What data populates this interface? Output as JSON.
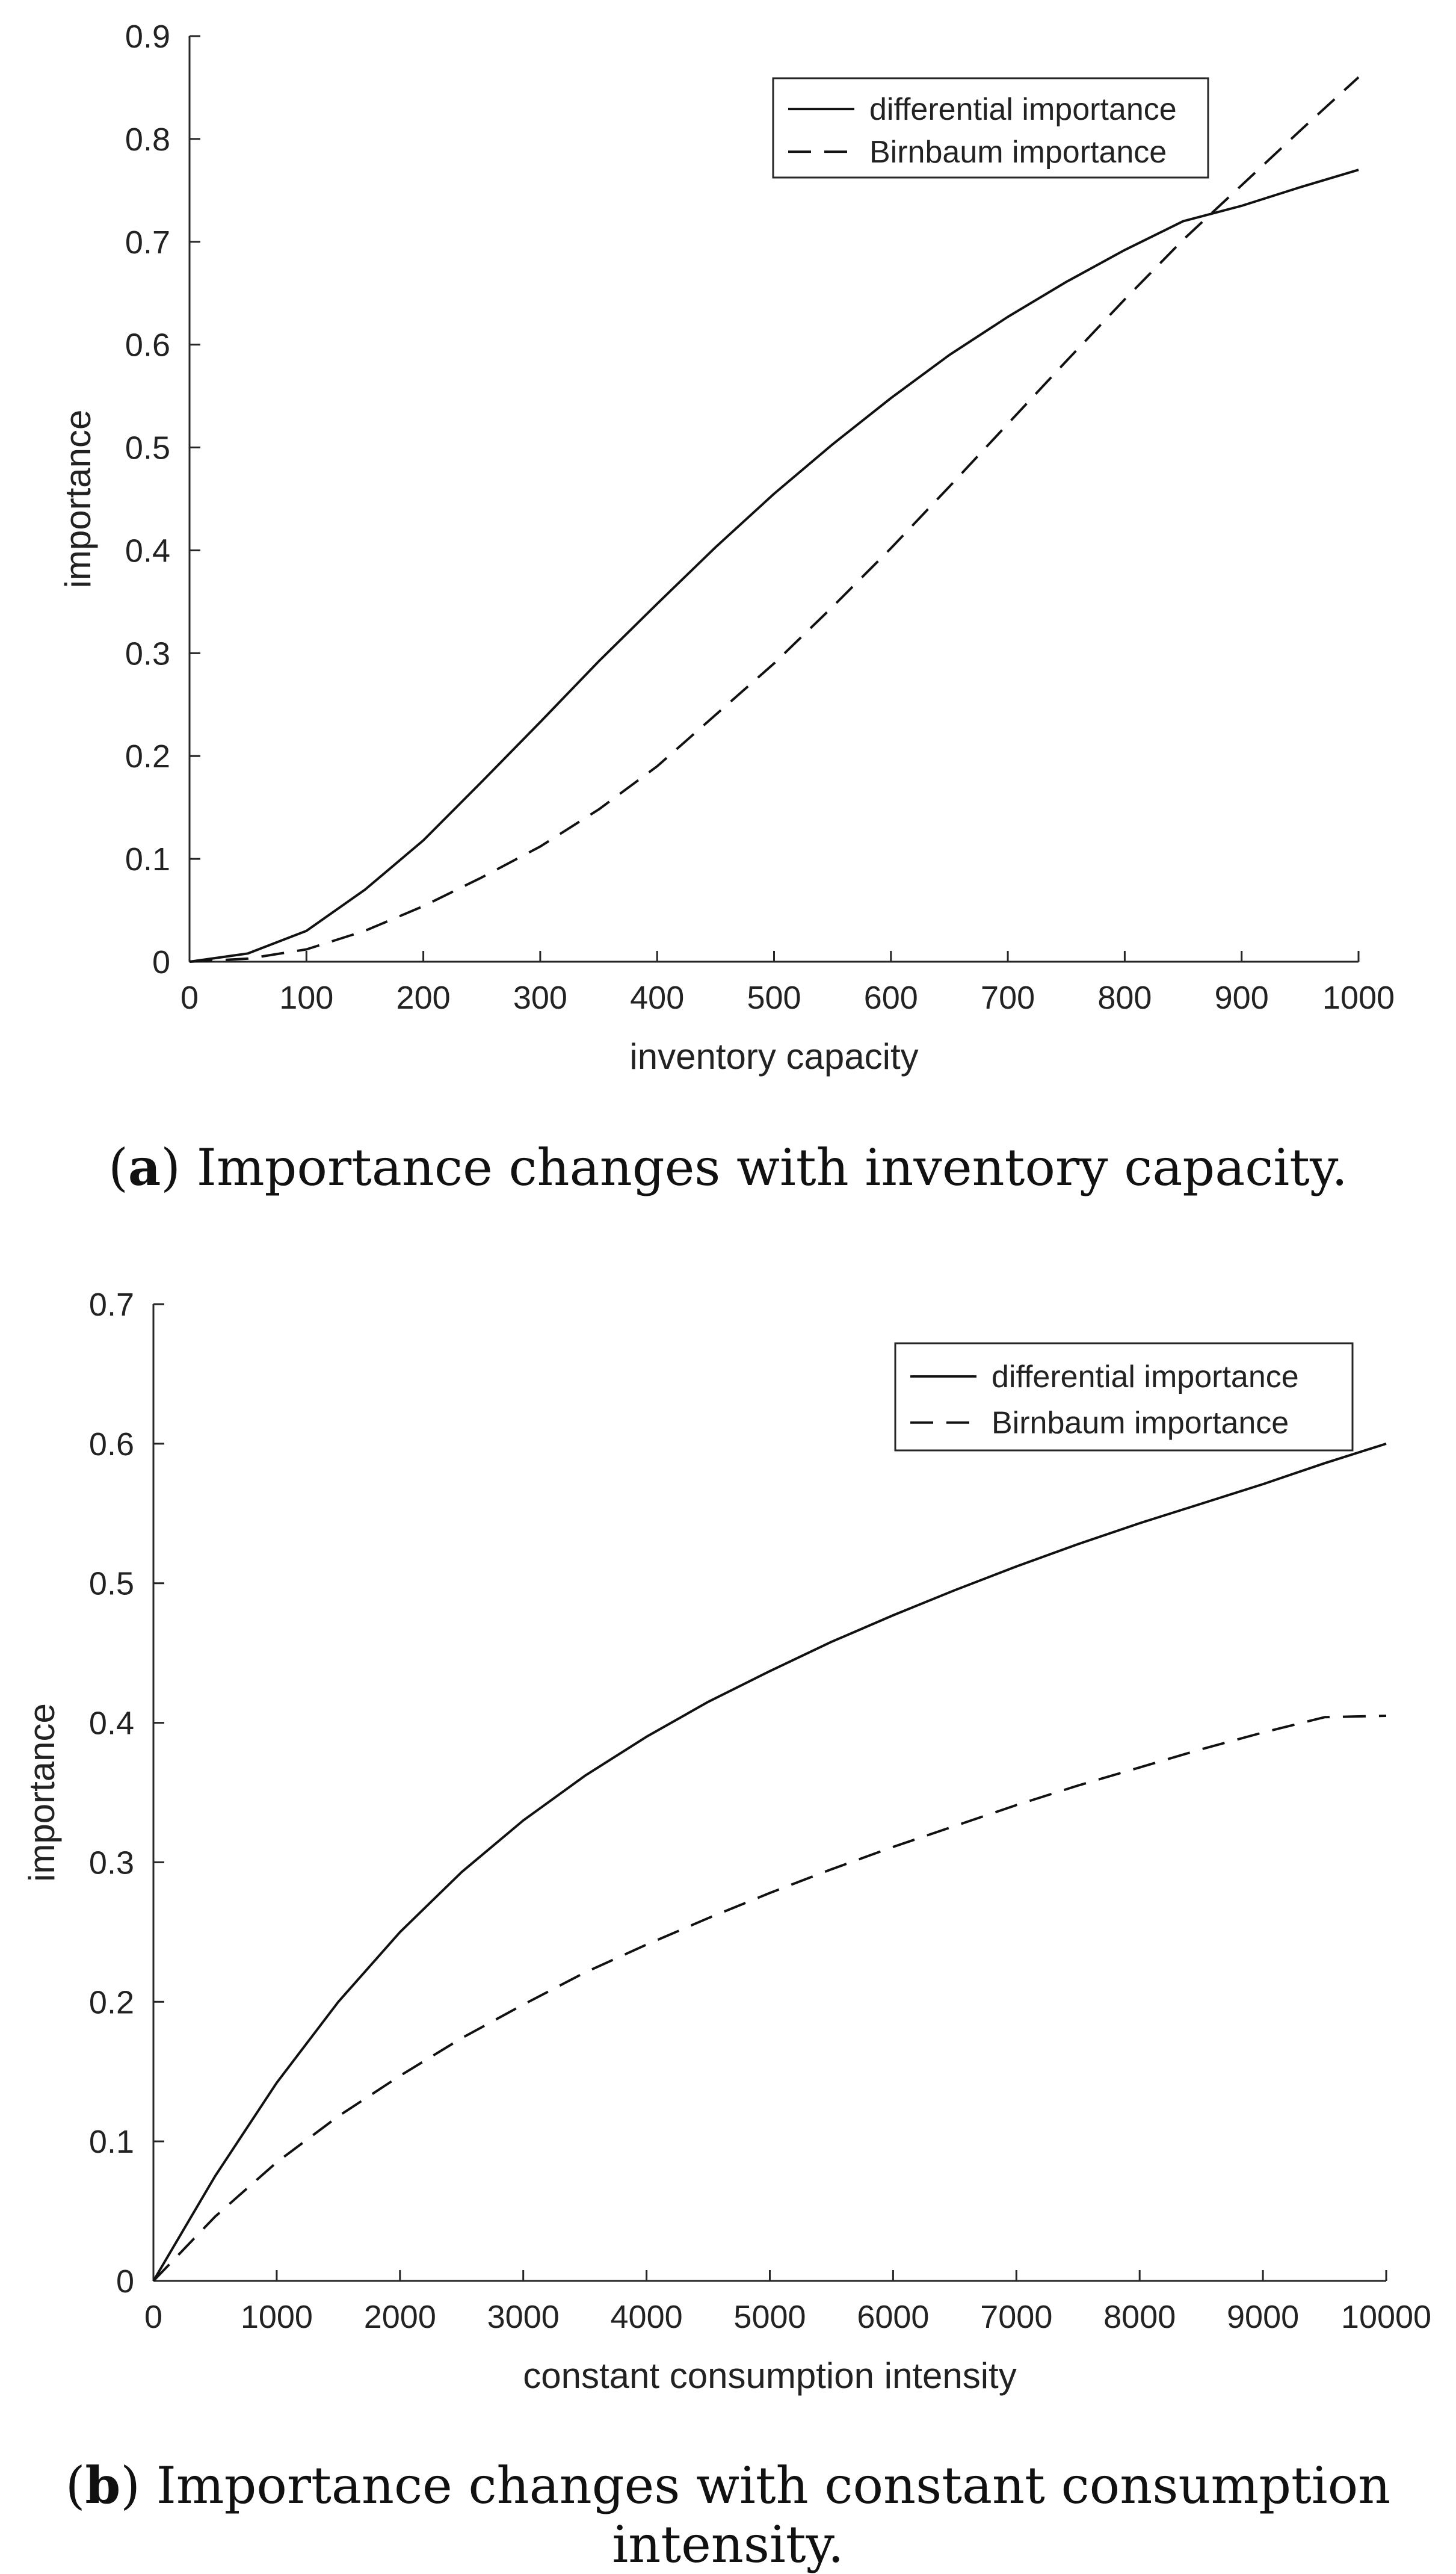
{
  "chart_data": [
    {
      "id": "a",
      "type": "line",
      "xlabel": "inventory capacity",
      "ylabel": "importance",
      "xlim": [
        0,
        1000
      ],
      "ylim": [
        0,
        0.9
      ],
      "xticks": [
        0,
        100,
        200,
        300,
        400,
        500,
        600,
        700,
        800,
        900,
        1000
      ],
      "xtick_labels": [
        "0",
        "100",
        "200",
        "300",
        "400",
        "500",
        "600",
        "700",
        "800",
        "900",
        "1000"
      ],
      "yticks": [
        0,
        0.1,
        0.2,
        0.3,
        0.4,
        0.5,
        0.6,
        0.7,
        0.8,
        0.9
      ],
      "ytick_labels": [
        "0",
        "0.1",
        "0.2",
        "0.3",
        "0.4",
        "0.5",
        "0.6",
        "0.7",
        "0.8",
        "0.9"
      ],
      "legend_position": "top-right",
      "x": [
        0,
        50,
        100,
        150,
        200,
        250,
        300,
        350,
        400,
        450,
        500,
        550,
        600,
        650,
        700,
        750,
        800,
        850,
        900,
        950,
        1000
      ],
      "series": [
        {
          "name": "differential importance",
          "style": "solid",
          "values": [
            0,
            0.008,
            0.03,
            0.07,
            0.118,
            0.175,
            0.233,
            0.292,
            0.348,
            0.403,
            0.455,
            0.503,
            0.548,
            0.59,
            0.627,
            0.661,
            0.692,
            0.72,
            0.735,
            0.753,
            0.77
          ]
        },
        {
          "name": "Birnbaum importance",
          "style": "dashed",
          "values": [
            0,
            0.003,
            0.012,
            0.03,
            0.054,
            0.082,
            0.112,
            0.148,
            0.19,
            0.24,
            0.29,
            0.345,
            0.402,
            0.462,
            0.523,
            0.584,
            0.644,
            0.702,
            0.755,
            0.808,
            0.86
          ]
        }
      ],
      "caption_letter": "a",
      "caption_text": " Importance changes with inventory capacity."
    },
    {
      "id": "b",
      "type": "line",
      "xlabel": "constant consumption intensity",
      "ylabel": "importance",
      "xlim": [
        0,
        10000
      ],
      "ylim": [
        0,
        0.7
      ],
      "xticks": [
        0,
        1000,
        2000,
        3000,
        4000,
        5000,
        6000,
        7000,
        8000,
        9000,
        10000
      ],
      "xtick_labels": [
        "0",
        "1000",
        "2000",
        "3000",
        "4000",
        "5000",
        "6000",
        "7000",
        "8000",
        "9000",
        "10000"
      ],
      "yticks": [
        0,
        0.1,
        0.2,
        0.3,
        0.4,
        0.5,
        0.6,
        0.7
      ],
      "ytick_labels": [
        "0",
        "0.1",
        "0.2",
        "0.3",
        "0.4",
        "0.5",
        "0.6",
        "0.7"
      ],
      "legend_position": "top-right",
      "x": [
        0,
        500,
        1000,
        1500,
        2000,
        2500,
        3000,
        3500,
        4000,
        4500,
        5000,
        5500,
        6000,
        6500,
        7000,
        7500,
        8000,
        8500,
        9000,
        9500,
        10000
      ],
      "series": [
        {
          "name": "differential importance",
          "style": "solid",
          "values": [
            0,
            0.075,
            0.142,
            0.2,
            0.25,
            0.293,
            0.33,
            0.362,
            0.39,
            0.415,
            0.437,
            0.458,
            0.477,
            0.495,
            0.512,
            0.528,
            0.543,
            0.557,
            0.571,
            0.586,
            0.6
          ]
        },
        {
          "name": "Birnbaum importance",
          "style": "dashed",
          "values": [
            0,
            0.046,
            0.085,
            0.118,
            0.147,
            0.174,
            0.198,
            0.221,
            0.241,
            0.26,
            0.278,
            0.295,
            0.311,
            0.326,
            0.341,
            0.355,
            0.368,
            0.381,
            0.393,
            0.404,
            0.405
          ]
        }
      ],
      "caption_letter": "b",
      "caption_text": " Importance changes with constant consumption intensity."
    }
  ]
}
